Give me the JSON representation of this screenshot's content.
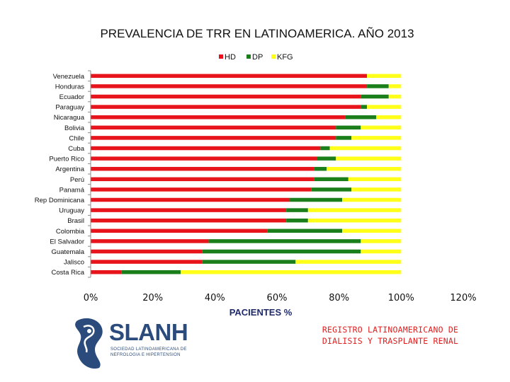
{
  "chart_data": {
    "type": "bar",
    "orientation": "horizontal",
    "stacked": true,
    "title": "PREVALENCIA DE TRR EN LATINOAMERICA. AÑO 2013",
    "xlabel": "PACIENTES %",
    "ylabel": "",
    "xlim": [
      0,
      120
    ],
    "xticks": [
      "0%",
      "20%",
      "40%",
      "60%",
      "80%",
      "100%",
      "120%"
    ],
    "xtick_values": [
      0,
      20,
      40,
      60,
      80,
      100,
      120
    ],
    "legend_position": "top",
    "categories": [
      "Venezuela",
      "Honduras",
      "Ecuador",
      "Paraguay",
      "Nicaragua",
      "Bolivia",
      "Chile",
      "Cuba",
      "Puerto Rico",
      "Argentina",
      "Perú",
      "Panamá",
      "Rep Dominicana",
      "Uruguay",
      "Brasil",
      "Colombia",
      "El Salvador",
      "Guatemala",
      "Jalisco",
      "Costa Rica"
    ],
    "series": [
      {
        "name": "HD",
        "color": "#e8141c",
        "values": [
          89,
          89,
          87,
          87,
          82,
          79,
          79,
          74,
          73,
          72,
          72,
          71,
          64,
          63,
          63,
          57,
          38,
          36,
          36,
          10
        ]
      },
      {
        "name": "DP",
        "color": "#1a7f1a",
        "values": [
          0,
          7,
          9,
          2,
          10,
          8,
          5,
          3,
          6,
          4,
          11,
          13,
          17,
          7,
          7,
          24,
          49,
          51,
          30,
          19
        ]
      },
      {
        "name": "KFG",
        "color": "#ffff1a",
        "values": [
          11,
          4,
          4,
          11,
          8,
          13,
          16,
          23,
          21,
          24,
          17,
          16,
          19,
          30,
          30,
          19,
          13,
          13,
          34,
          71
        ]
      }
    ]
  },
  "footer": {
    "source_line1": "REGISTRO LATINOAMERICANO DE",
    "source_line2": "DIALISIS Y TRASPLANTE RENAL",
    "logo_name": "SLANH",
    "logo_subtitle": "SOCIEDAD LATINOAMERICANA DE NEFROLOGIA E HIPERTENSION",
    "logo_color": "#2a4b7c"
  }
}
